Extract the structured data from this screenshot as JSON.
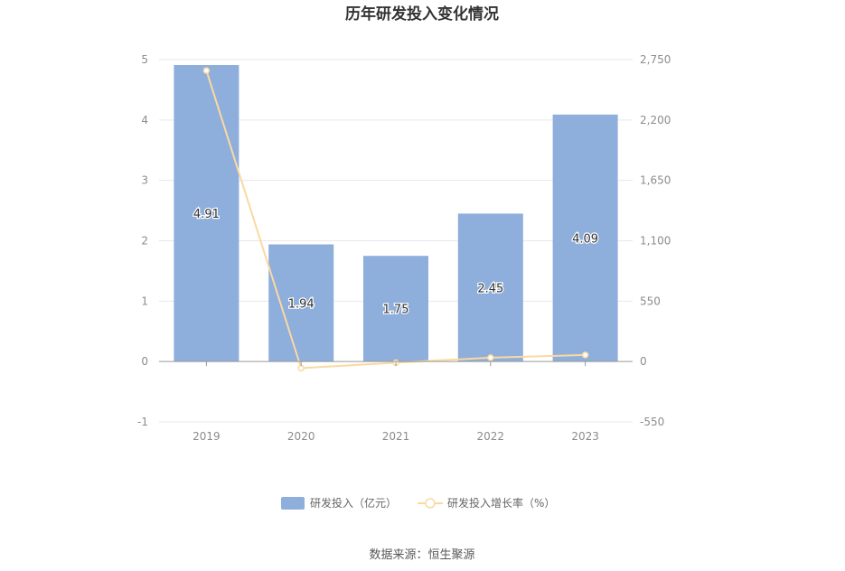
{
  "chart_data": {
    "type": "bar",
    "title": "历年研发投入变化情况",
    "categories": [
      "2019",
      "2020",
      "2021",
      "2022",
      "2023"
    ],
    "series": [
      {
        "name": "研发投入（亿元）",
        "type": "bar",
        "axis": "left",
        "values": [
          4.91,
          1.94,
          1.75,
          2.45,
          4.09
        ],
        "data_labels": [
          "4.91",
          "1.94",
          "1.75",
          "2.45",
          "4.09"
        ],
        "color": "#8eaedb"
      },
      {
        "name": "研发投入增长率（%）",
        "type": "line",
        "axis": "right",
        "values": [
          2650,
          -60,
          -10,
          35,
          60
        ],
        "color": "#fad9a1"
      }
    ],
    "y_left": {
      "ylim": [
        -1,
        5
      ],
      "ticks": [
        "-1",
        "0",
        "1",
        "2",
        "3",
        "4",
        "5"
      ]
    },
    "y_right": {
      "ylim": [
        -550,
        2750
      ],
      "ticks": [
        "-550",
        "0",
        "550",
        "1,100",
        "1,650",
        "2,200",
        "2,750"
      ]
    },
    "grid": true,
    "legend_position": "bottom"
  },
  "source_text": "数据来源：恒生聚源"
}
